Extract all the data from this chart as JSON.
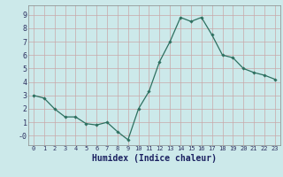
{
  "x": [
    0,
    1,
    2,
    3,
    4,
    5,
    6,
    7,
    8,
    9,
    10,
    11,
    12,
    13,
    14,
    15,
    16,
    17,
    18,
    19,
    20,
    21,
    22,
    23
  ],
  "y": [
    3.0,
    2.8,
    2.0,
    1.4,
    1.4,
    0.9,
    0.8,
    1.0,
    0.3,
    -0.3,
    2.0,
    3.3,
    5.5,
    7.0,
    8.8,
    8.5,
    8.8,
    7.5,
    6.0,
    5.8,
    5.0,
    4.7,
    4.5,
    4.2
  ],
  "line_color": "#2d7060",
  "marker": "D",
  "marker_size": 1.8,
  "bg_color": "#cce9ea",
  "grid_color_major": "#c8a0a0",
  "grid_color_minor": "#c0d8d8",
  "xlabel": "Humidex (Indice chaleur)",
  "xlabel_fontsize": 7,
  "xtick_labels": [
    "0",
    "1",
    "2",
    "3",
    "4",
    "5",
    "6",
    "7",
    "8",
    "9",
    "10",
    "11",
    "12",
    "13",
    "14",
    "15",
    "16",
    "17",
    "18",
    "19",
    "20",
    "21",
    "22",
    "23"
  ],
  "ytick_labels": [
    "-0",
    "1",
    "2",
    "3",
    "4",
    "5",
    "6",
    "7",
    "8",
    "9"
  ],
  "ytick_vals": [
    0,
    1,
    2,
    3,
    4,
    5,
    6,
    7,
    8,
    9
  ],
  "ylim": [
    -0.7,
    9.7
  ],
  "xlim": [
    -0.5,
    23.5
  ]
}
